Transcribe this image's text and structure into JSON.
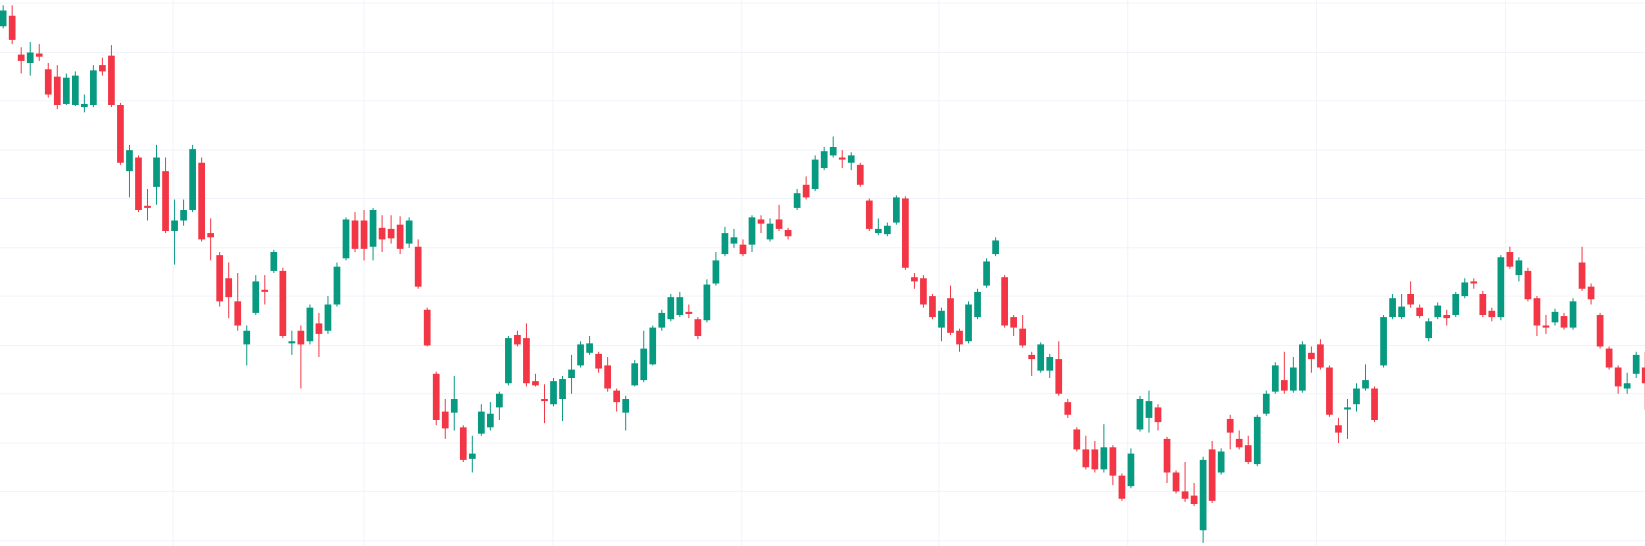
{
  "chart_data": {
    "type": "candlestick",
    "up_color": "#089981",
    "down_color": "#f23645",
    "grid": true,
    "grid_color": "#f0f3fa",
    "ylim": [
      0,
      520
    ],
    "yticks": [
      5,
      52,
      98,
      145,
      191,
      238,
      284,
      331,
      377,
      424,
      470,
      517
    ],
    "open": [
      495,
      505,
      468,
      460,
      469,
      454,
      447,
      421,
      420,
      418,
      420,
      458,
      467,
      420,
      357,
      370,
      324,
      342,
      357,
      300,
      310,
      320,
      365,
      298,
      277,
      255,
      233,
      192,
      222,
      244,
      262,
      262,
      193,
      205,
      195,
      212,
      205,
      230,
      274,
      310,
      310,
      285,
      303,
      302,
      306,
      288,
      285,
      225,
      164,
      128,
      127,
      113,
      83,
      107,
      113,
      132,
      155,
      201,
      198,
      157,
      140,
      135,
      140,
      160,
      172,
      184,
      183,
      172,
      148,
      127,
      153,
      158,
      173,
      208,
      216,
      220,
      223,
      216,
      215,
      250,
      278,
      288,
      287,
      287,
      311,
      292,
      311,
      301,
      322,
      344,
      340,
      360,
      372,
      370,
      365,
      363,
      329,
      298,
      297,
      308,
      331,
      256,
      255,
      238,
      208,
      236,
      205,
      195,
      218,
      248,
      278,
      256,
      218,
      207,
      182,
      167,
      167,
      178,
      137,
      111,
      92,
      92,
      73,
      94,
      67,
      57,
      111,
      122,
      132,
      102,
      70,
      52,
      48,
      15,
      92,
      70,
      121,
      102,
      96,
      78,
      126,
      147,
      158,
      148,
      148,
      184,
      192,
      170,
      115,
      130,
      135,
      150,
      150,
      172,
      218,
      218,
      240,
      227,
      198,
      218,
      220,
      220,
      238,
      252,
      240,
      224,
      218,
      280,
      258,
      262,
      236,
      210,
      213,
      219,
      208,
      270,
      247,
      220,
      188,
      170,
      150,
      164,
      170
    ],
    "high": [
      515,
      515,
      475,
      480,
      478,
      460,
      458,
      450,
      452,
      430,
      458,
      465,
      477,
      422,
      382,
      372,
      340,
      382,
      370,
      330,
      330,
      382,
      370,
      312,
      280,
      270,
      260,
      210,
      258,
      258,
      282,
      265,
      205,
      210,
      230,
      222,
      238,
      270,
      313,
      318,
      320,
      322,
      315,
      315,
      314,
      313,
      292,
      227,
      166,
      140,
      162,
      115,
      105,
      135,
      137,
      147,
      200,
      205,
      212,
      164,
      154,
      160,
      162,
      182,
      195,
      200,
      185,
      180,
      150,
      143,
      177,
      205,
      210,
      225,
      240,
      242,
      230,
      218,
      254,
      280,
      304,
      302,
      292,
      315,
      315,
      312,
      325,
      303,
      340,
      352,
      372,
      380,
      390,
      377,
      375,
      365,
      331,
      312,
      308,
      334,
      333,
      260,
      258,
      240,
      227,
      248,
      207,
      233,
      245,
      274,
      294,
      258,
      220,
      220,
      185,
      194,
      183,
      195,
      140,
      113,
      105,
      100,
      116,
      96,
      69,
      93,
      143,
      148,
      135,
      104,
      72,
      80,
      60,
      85,
      100,
      93,
      125,
      110,
      105,
      125,
      148,
      175,
      185,
      180,
      195,
      190,
      197,
      172,
      122,
      140,
      155,
      173,
      152,
      220,
      240,
      240,
      252,
      230,
      217,
      232,
      225,
      242,
      255,
      255,
      243,
      227,
      277,
      285,
      275,
      265,
      238,
      220,
      226,
      222,
      236,
      285,
      250,
      222,
      190,
      172,
      165,
      185,
      185
    ],
    "low": [
      493,
      478,
      450,
      448,
      462,
      427,
      416,
      420,
      419,
      413,
      418,
      448,
      418,
      363,
      332,
      318,
      310,
      325,
      298,
      268,
      305,
      318,
      290,
      272,
      228,
      217,
      205,
      172,
      220,
      230,
      260,
      198,
      182,
      150,
      192,
      180,
      202,
      228,
      272,
      280,
      272,
      272,
      280,
      288,
      278,
      284,
      245,
      190,
      115,
      102,
      110,
      80,
      70,
      105,
      110,
      120,
      153,
      190,
      152,
      152,
      117,
      133,
      119,
      145,
      170,
      182,
      165,
      147,
      128,
      110,
      152,
      156,
      172,
      205,
      214,
      218,
      217,
      197,
      213,
      248,
      276,
      284,
      276,
      280,
      298,
      290,
      300,
      292,
      320,
      330,
      338,
      358,
      370,
      360,
      358,
      342,
      300,
      296,
      295,
      306,
      263,
      245,
      227,
      216,
      195,
      201,
      185,
      193,
      216,
      246,
      276,
      208,
      200,
      189,
      162,
      165,
      160,
      143,
      122,
      90,
      73,
      70,
      70,
      58,
      43,
      55,
      109,
      108,
      110,
      60,
      50,
      42,
      38,
      3,
      41,
      68,
      92,
      92,
      78,
      76,
      124,
      145,
      145,
      146,
      146,
      165,
      168,
      123,
      98,
      102,
      128,
      148,
      118,
      170,
      216,
      216,
      227,
      217,
      195,
      216,
      210,
      218,
      236,
      245,
      218,
      214,
      215,
      264,
      252,
      233,
      200,
      202,
      210,
      206,
      206,
      243,
      230,
      188,
      168,
      145,
      145,
      160,
      130
    ],
    "close": [
      510,
      482,
      462,
      470,
      466,
      430,
      420,
      446,
      448,
      421,
      453,
      452,
      420,
      365,
      377,
      320,
      322,
      370,
      300,
      310,
      320,
      378,
      292,
      294,
      233,
      237,
      210,
      205,
      252,
      242,
      280,
      200,
      195,
      192,
      227,
      202,
      230,
      266,
      311,
      283,
      283,
      320,
      292,
      293,
      283,
      310,
      247,
      191,
      120,
      112,
      140,
      82,
      88,
      128,
      126,
      145,
      198,
      192,
      155,
      153,
      138,
      157,
      159,
      168,
      192,
      193,
      169,
      150,
      137,
      140,
      174,
      188,
      208,
      222,
      237,
      237,
      221,
      200,
      249,
      272,
      298,
      294,
      278,
      313,
      307,
      307,
      302,
      295,
      336,
      332,
      368,
      376,
      380,
      368,
      372,
      344,
      302,
      302,
      305,
      332,
      265,
      252,
      230,
      218,
      224,
      203,
      192,
      230,
      242,
      271,
      291,
      210,
      208,
      191,
      178,
      192,
      180,
      145,
      125,
      92,
      75,
      73,
      94,
      67,
      45,
      88,
      140,
      138,
      118,
      70,
      52,
      45,
      40,
      82,
      43,
      90,
      108,
      94,
      80,
      123,
      145,
      172,
      148,
      170,
      192,
      178,
      170,
      125,
      108,
      132,
      150,
      158,
      120,
      218,
      236,
      228,
      230,
      219,
      214,
      229,
      217,
      240,
      251,
      250,
      220,
      218,
      275,
      266,
      272,
      235,
      210,
      208,
      223,
      208,
      233,
      245,
      235,
      190,
      170,
      152,
      155,
      182,
      155
    ]
  }
}
